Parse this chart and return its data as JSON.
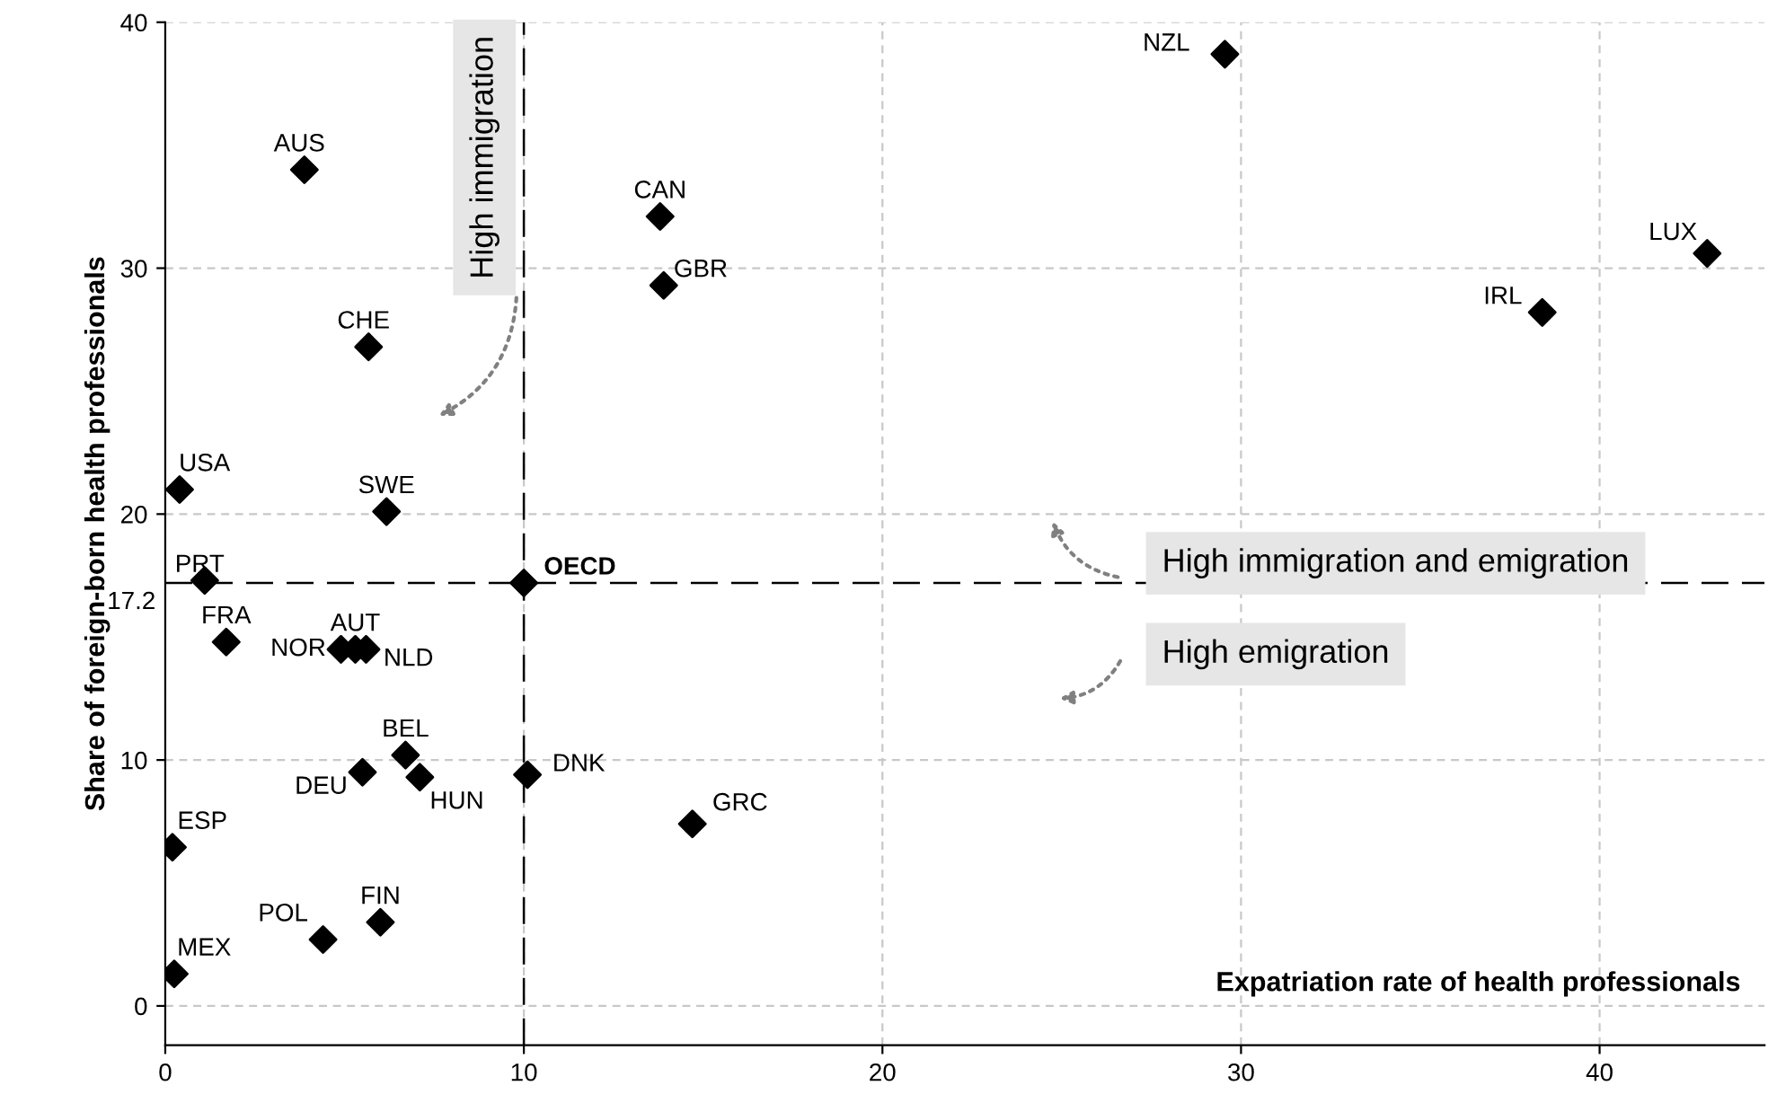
{
  "chart_data": {
    "type": "scatter",
    "xlabel": "Expatriation rate of health professionals",
    "ylabel": "Share of foreign-born health professionals",
    "x": [
      29.55,
      3.88,
      13.8,
      13.9,
      43.0,
      38.4,
      5.67,
      0.4,
      6.17,
      1.1,
      10.0,
      1.7,
      4.9,
      5.3,
      5.6,
      6.7,
      5.5,
      7.1,
      10.1,
      14.7,
      0.2,
      0.25,
      4.4,
      6.0
    ],
    "series": [
      {
        "color": "#000000",
        "values": [
          38.7,
          34.0,
          32.1,
          29.3,
          30.6,
          28.2,
          26.8,
          21.0,
          20.1,
          17.3,
          17.2,
          14.8,
          14.5,
          14.5,
          14.5,
          10.2,
          9.5,
          9.3,
          9.4,
          7.4,
          6.45,
          1.3,
          2.7,
          3.4
        ]
      }
    ],
    "marker": "diamond",
    "xlim": [
      0,
      44.6
    ],
    "ylim": [
      -1.6,
      40
    ],
    "xticks": [
      0,
      10,
      20,
      30,
      40
    ],
    "yticks": [
      0,
      10,
      20,
      30,
      40
    ],
    "grid": true,
    "ref_lines": [
      {
        "axis": "x",
        "value": 10,
        "label": null,
        "color": "#000000",
        "line_style": "dashed"
      },
      {
        "axis": "y",
        "value": 17.2,
        "label": "17.2",
        "color": "#000000",
        "line_style": "dashed"
      }
    ],
    "annotations": [
      {
        "text": "NZL",
        "x": 29.55,
        "y": 38.7
      },
      {
        "text": "AUS",
        "x": 3.88,
        "y": 34.0
      },
      {
        "text": "CAN",
        "x": 13.8,
        "y": 32.1
      },
      {
        "text": "GBR",
        "x": 13.9,
        "y": 29.3
      },
      {
        "text": "LUX",
        "x": 43.0,
        "y": 30.6
      },
      {
        "text": "IRL",
        "x": 38.4,
        "y": 28.2
      },
      {
        "text": "CHE",
        "x": 5.67,
        "y": 26.8
      },
      {
        "text": "USA",
        "x": 0.4,
        "y": 21.0
      },
      {
        "text": "SWE",
        "x": 6.17,
        "y": 20.1
      },
      {
        "text": "PRT",
        "x": 1.1,
        "y": 17.3
      },
      {
        "text": "OECD",
        "x": 10.0,
        "y": 17.2
      },
      {
        "text": "FRA",
        "x": 1.7,
        "y": 14.8
      },
      {
        "text": "NOR",
        "x": 4.9,
        "y": 14.5
      },
      {
        "text": "AUT",
        "x": 5.3,
        "y": 14.5
      },
      {
        "text": "NLD",
        "x": 5.6,
        "y": 14.5
      },
      {
        "text": "BEL",
        "x": 6.7,
        "y": 10.2
      },
      {
        "text": "DEU",
        "x": 5.5,
        "y": 9.5
      },
      {
        "text": "HUN",
        "x": 7.1,
        "y": 9.3
      },
      {
        "text": "DNK",
        "x": 10.1,
        "y": 9.4
      },
      {
        "text": "GRC",
        "x": 14.7,
        "y": 7.4
      },
      {
        "text": "ESP",
        "x": 0.2,
        "y": 6.45
      },
      {
        "text": "MEX",
        "x": 0.25,
        "y": 1.3
      },
      {
        "text": "POL",
        "x": 4.4,
        "y": 2.7
      },
      {
        "text": "FIN",
        "x": 6.0,
        "y": 3.4
      },
      "High immigration",
      "High immigration and emigration",
      "High emigration"
    ]
  }
}
